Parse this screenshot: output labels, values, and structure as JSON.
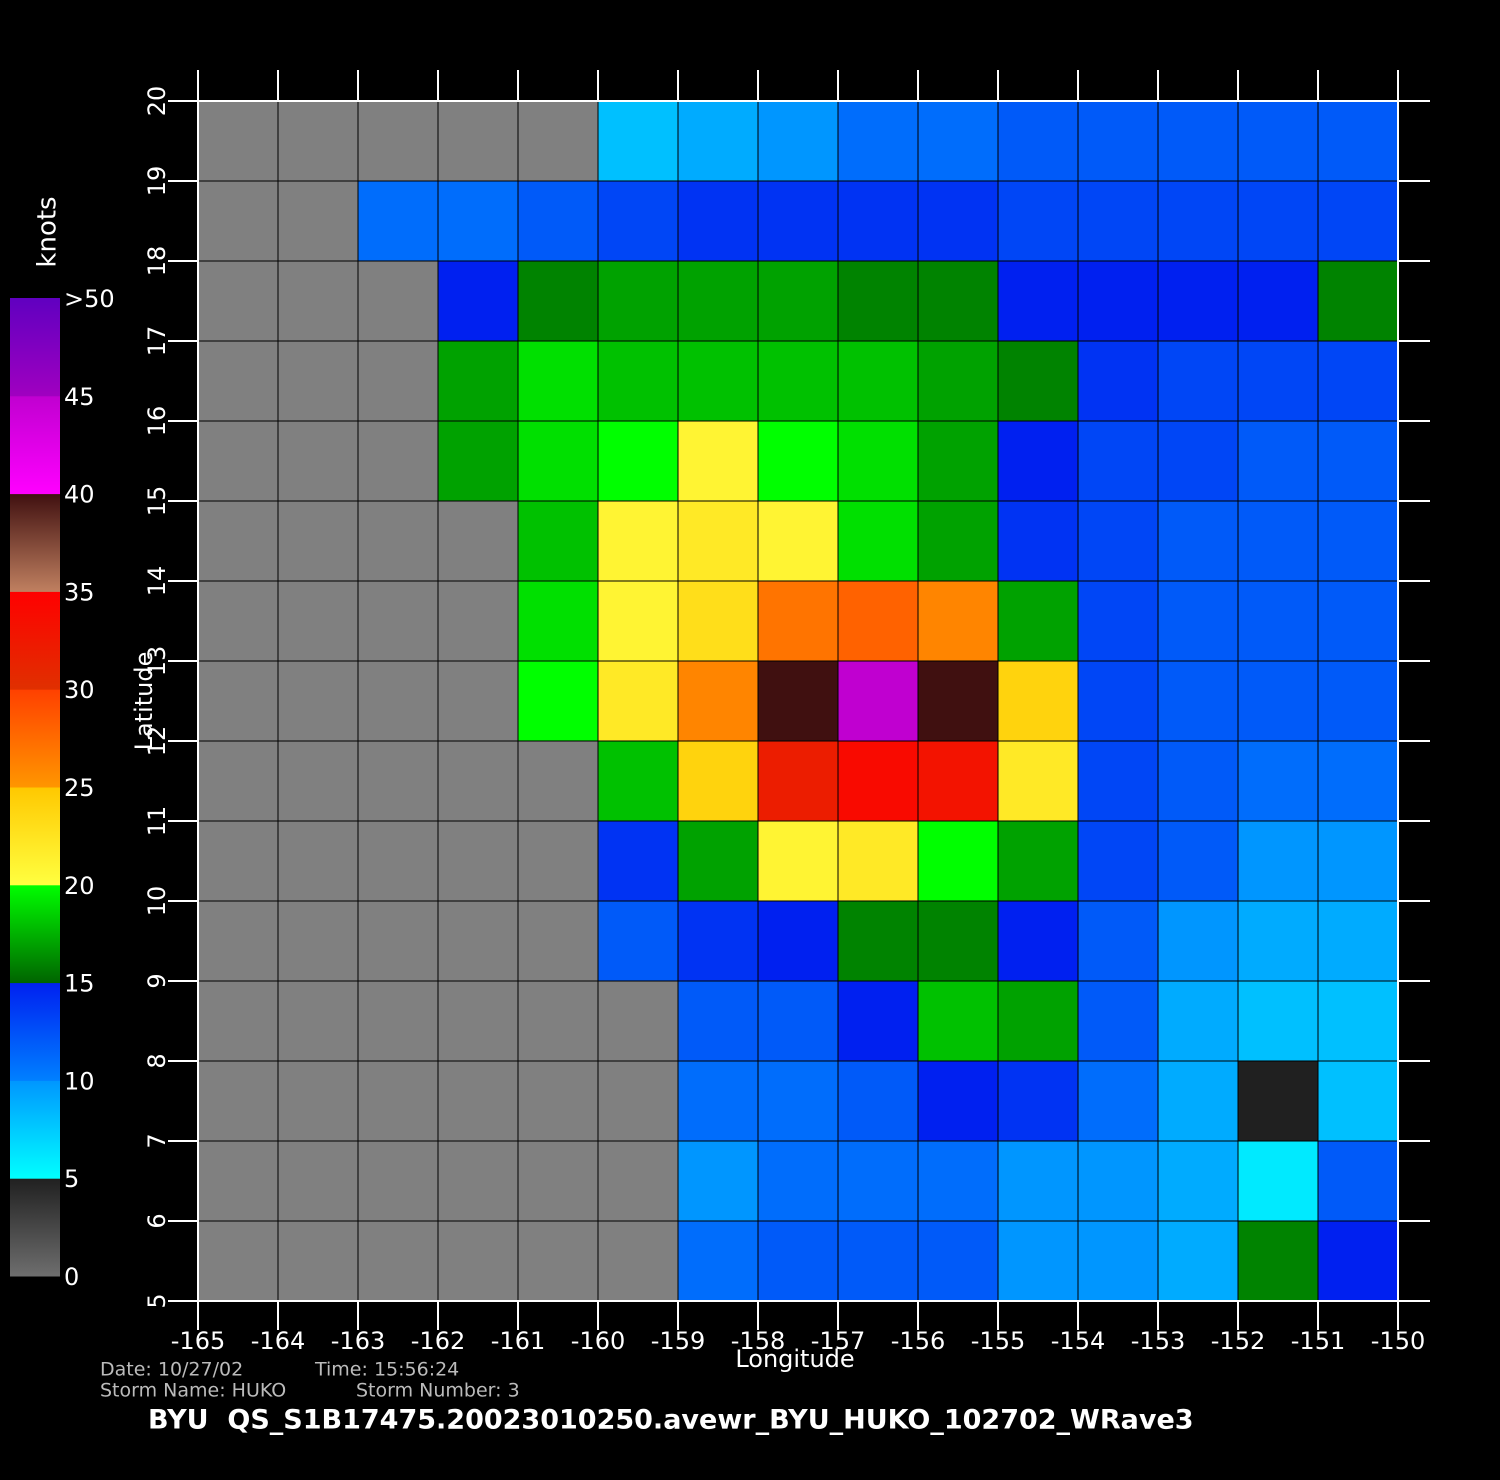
{
  "chart_data": {
    "type": "heatmap",
    "xlabel": "Longitude",
    "ylabel": "Latitude",
    "xlim": [
      -165,
      -150
    ],
    "ylim": [
      5,
      20
    ],
    "xticks": [
      -165,
      -164,
      -163,
      -162,
      -161,
      -160,
      -159,
      -158,
      -157,
      -156,
      -155,
      -154,
      -153,
      -152,
      -151,
      -150
    ],
    "yticks": [
      5,
      6,
      7,
      8,
      9,
      10,
      11,
      12,
      13,
      14,
      15,
      16,
      17,
      18,
      19,
      20
    ],
    "grid": true,
    "no_data_color": "#808080",
    "z": [
      [
        null,
        null,
        null,
        null,
        null,
        8,
        9,
        10,
        11,
        11,
        12,
        12,
        12,
        12,
        12
      ],
      [
        null,
        null,
        11,
        11,
        12,
        13,
        14,
        14,
        14,
        14,
        13,
        13,
        13,
        13,
        13
      ],
      [
        null,
        null,
        null,
        15,
        16,
        17,
        17,
        17,
        16,
        16,
        15,
        15,
        15,
        15,
        16
      ],
      [
        null,
        null,
        null,
        17,
        19,
        18,
        18,
        18,
        18,
        17,
        16,
        14,
        13,
        13,
        13
      ],
      [
        null,
        null,
        null,
        17,
        19,
        20,
        21,
        20,
        19,
        17,
        15,
        13,
        13,
        12,
        12
      ],
      [
        null,
        null,
        null,
        null,
        18,
        21,
        22,
        21,
        19,
        17,
        14,
        13,
        12,
        12,
        12
      ],
      [
        null,
        null,
        null,
        null,
        19,
        21,
        23,
        27,
        28,
        26,
        17,
        13,
        12,
        12,
        12
      ],
      [
        null,
        null,
        null,
        null,
        20,
        22,
        26,
        40,
        45,
        40,
        24,
        13,
        12,
        12,
        12
      ],
      [
        null,
        null,
        null,
        null,
        null,
        18,
        24,
        32,
        34,
        33,
        22,
        13,
        12,
        11,
        11
      ],
      [
        null,
        null,
        null,
        null,
        null,
        14,
        17,
        21,
        22,
        20,
        17,
        13,
        12,
        10,
        10
      ],
      [
        null,
        null,
        null,
        null,
        null,
        12,
        14,
        15,
        16,
        16,
        15,
        12,
        10,
        9,
        9
      ],
      [
        null,
        null,
        null,
        null,
        null,
        null,
        12,
        12,
        15,
        18,
        17,
        12,
        9,
        8,
        8
      ],
      [
        null,
        null,
        null,
        null,
        null,
        null,
        11,
        11,
        12,
        15,
        14,
        11,
        9,
        5,
        8
      ],
      [
        null,
        null,
        null,
        null,
        null,
        null,
        10,
        11,
        11,
        11,
        10,
        10,
        9,
        6,
        12
      ],
      [
        null,
        null,
        null,
        null,
        null,
        null,
        11,
        12,
        12,
        12,
        10,
        10,
        9,
        16,
        15
      ]
    ],
    "colorbar": {
      "label": "knots",
      "lim": [
        0,
        50
      ],
      "ticks": [
        0,
        5,
        10,
        15,
        20,
        25,
        30,
        35,
        40,
        45,
        {
          "value": 50,
          "label": ">50"
        }
      ],
      "band_colors": [
        [
          "#6e6e6e",
          "#202020"
        ],
        [
          "#00ffff",
          "#0096ff"
        ],
        [
          "#0080ff",
          "#0020f0"
        ],
        [
          "#006400",
          "#00ff00"
        ],
        [
          "#ffff40",
          "#ffc800"
        ],
        [
          "#ff9600",
          "#ff4000"
        ],
        [
          "#e03000",
          "#ff0000"
        ],
        [
          "#c08060",
          "#401010"
        ],
        [
          "#ff00ff",
          "#c000d0"
        ],
        [
          "#a000c0",
          "#6000c0"
        ]
      ]
    },
    "footer": {
      "date": "Date: 10/27/02",
      "time": "Time: 15:56:24",
      "storm_name": "Storm Name: HUKO",
      "storm_number": "Storm Number: 3",
      "file": "BYU  QS_S1B17475.20023010250.avewr_BYU_HUKO_102702_WRave3"
    }
  }
}
